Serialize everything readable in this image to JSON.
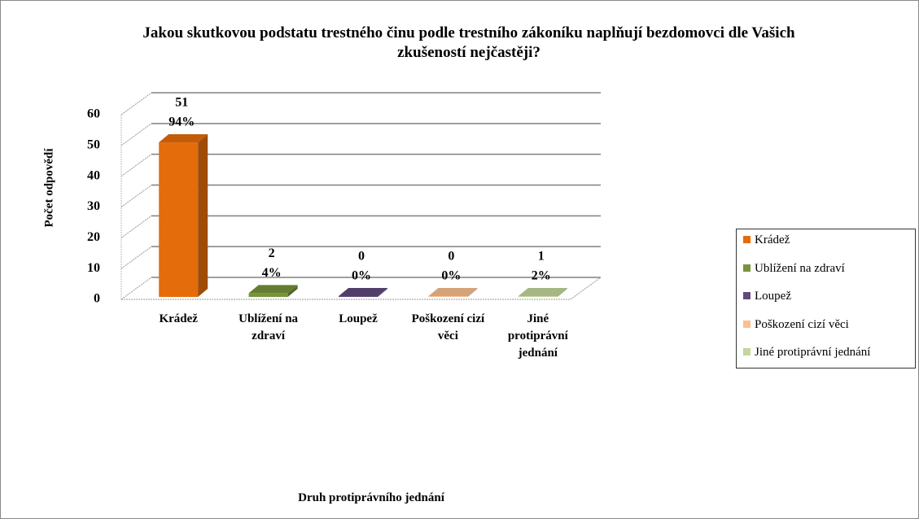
{
  "chart_data": {
    "type": "bar3d",
    "title": "Jakou skutkovou podstatu trestného činu podle trestního zákoníku naplňují bezdomovci dle Vašich zkušeností nejčastěji?",
    "x_label": "Druh protiprávního jednání",
    "y_label": "Počet odpovědí",
    "categories": [
      "Krádež",
      "Ublížení na zdraví",
      "Loupež",
      "Poškození cizí věci",
      "Jiné protiprávní jednání"
    ],
    "values": [
      51,
      2,
      0,
      0,
      1
    ],
    "percentage_labels": [
      "94%",
      "4%",
      "0%",
      "0%",
      "2%"
    ],
    "colors": [
      "#e46c0a",
      "#77933c",
      "#604a7b",
      "#fac090",
      "#c3d69b"
    ],
    "ylim": [
      0,
      60
    ],
    "yticks": [
      0,
      10,
      20,
      30,
      40,
      50,
      60
    ],
    "grid": true,
    "legend": "right"
  }
}
